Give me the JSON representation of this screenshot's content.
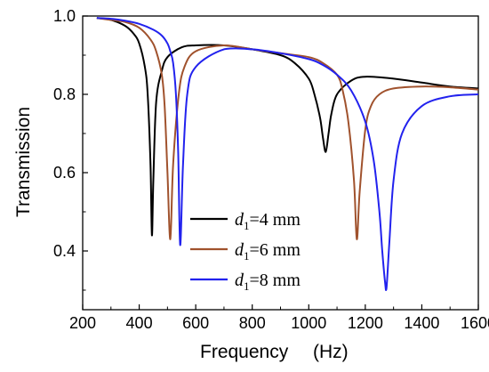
{
  "chart_data": {
    "type": "line",
    "title": "",
    "xlabel": "Frequency",
    "xunit": "(Hz)",
    "ylabel": "Transmission",
    "xlim": [
      200,
      1600
    ],
    "ylim": [
      0.25,
      1.0
    ],
    "xticks": [
      "200",
      "400",
      "600",
      "800",
      "1000",
      "1200",
      "1400",
      "1600"
    ],
    "yticks": [
      "0.4",
      "0.6",
      "0.8",
      "1.0"
    ],
    "grid": false,
    "legend_position": "bottom-center",
    "legend": [
      {
        "var": "d",
        "sub": "1",
        "text": "=4 mm"
      },
      {
        "var": "d",
        "sub": "1",
        "text": "=6 mm"
      },
      {
        "var": "d",
        "sub": "1",
        "text": "=8 mm"
      }
    ],
    "series": [
      {
        "name": "d1=4 mm",
        "color": "#000000",
        "x": [
          250,
          300,
          350,
          380,
          400,
          420,
          430,
          440,
          445,
          450,
          460,
          480,
          500,
          550,
          600,
          700,
          800,
          900,
          950,
          1000,
          1020,
          1040,
          1050,
          1060,
          1070,
          1080,
          1100,
          1150,
          1200,
          1300,
          1400,
          1500,
          1600
        ],
        "y": [
          0.995,
          0.99,
          0.975,
          0.955,
          0.93,
          0.87,
          0.8,
          0.62,
          0.44,
          0.58,
          0.78,
          0.86,
          0.895,
          0.92,
          0.925,
          0.925,
          0.915,
          0.9,
          0.88,
          0.84,
          0.8,
          0.74,
          0.69,
          0.653,
          0.7,
          0.75,
          0.8,
          0.835,
          0.845,
          0.84,
          0.83,
          0.82,
          0.815
        ]
      },
      {
        "name": "d1=6 mm",
        "color": "#a0522d",
        "x": [
          250,
          300,
          350,
          400,
          440,
          460,
          480,
          490,
          500,
          510,
          520,
          540,
          560,
          600,
          700,
          800,
          900,
          1000,
          1050,
          1100,
          1120,
          1140,
          1160,
          1170,
          1180,
          1200,
          1220,
          1250,
          1300,
          1400,
          1500,
          1600
        ],
        "y": [
          0.995,
          0.99,
          0.985,
          0.97,
          0.94,
          0.91,
          0.85,
          0.77,
          0.6,
          0.43,
          0.62,
          0.8,
          0.87,
          0.91,
          0.925,
          0.915,
          0.905,
          0.895,
          0.88,
          0.85,
          0.81,
          0.73,
          0.58,
          0.43,
          0.55,
          0.71,
          0.77,
          0.8,
          0.815,
          0.82,
          0.818,
          0.812
        ]
      },
      {
        "name": "d1=8 mm",
        "color": "#2222ee",
        "x": [
          250,
          300,
          350,
          400,
          450,
          480,
          500,
          510,
          520,
          530,
          538,
          545,
          555,
          570,
          600,
          700,
          800,
          900,
          1000,
          1050,
          1100,
          1150,
          1200,
          1230,
          1250,
          1260,
          1270,
          1275,
          1285,
          1300,
          1330,
          1400,
          1500,
          1600
        ],
        "y": [
          0.995,
          0.993,
          0.988,
          0.98,
          0.965,
          0.95,
          0.93,
          0.91,
          0.88,
          0.8,
          0.65,
          0.415,
          0.62,
          0.8,
          0.87,
          0.915,
          0.915,
          0.905,
          0.89,
          0.875,
          0.85,
          0.81,
          0.73,
          0.63,
          0.5,
          0.4,
          0.32,
          0.305,
          0.42,
          0.58,
          0.7,
          0.77,
          0.795,
          0.8
        ]
      }
    ]
  }
}
